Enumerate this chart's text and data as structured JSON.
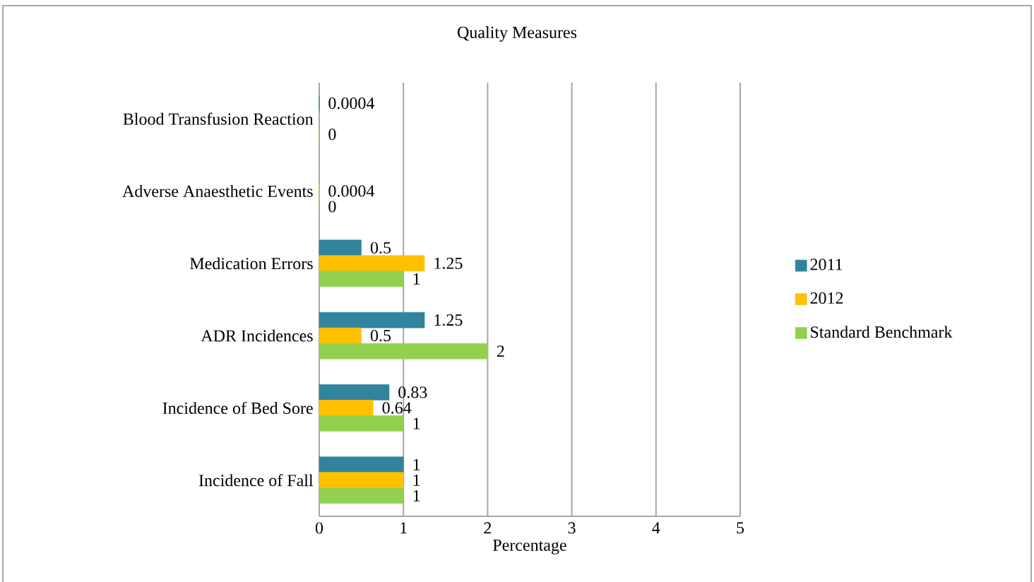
{
  "chart_data": {
    "type": "bar",
    "orientation": "horizontal",
    "title": "Quality Measures",
    "xlabel": "Percentage",
    "categories": [
      "Blood Transfusion Reaction",
      "Adverse Anaesthetic Events",
      "Medication Errors",
      "ADR Incidences",
      "Incidence of Bed Sore",
      "Incidence of Fall"
    ],
    "series": [
      {
        "name": "2011",
        "color": "#31849b",
        "values": [
          0.0004,
          null,
          0.5,
          1.25,
          0.83,
          1
        ]
      },
      {
        "name": "2012",
        "color": "#ffc000",
        "values": [
          null,
          0.0004,
          1.25,
          0.5,
          0.64,
          1
        ]
      },
      {
        "name": "Standard Benchmark",
        "color": "#92d050",
        "values": [
          0,
          0,
          1,
          2,
          1,
          1
        ]
      }
    ],
    "xlim": [
      0,
      5
    ],
    "xticks": [
      0,
      1,
      2,
      3,
      4,
      5
    ],
    "grid": "x",
    "legend": "right",
    "data_labels": true
  }
}
